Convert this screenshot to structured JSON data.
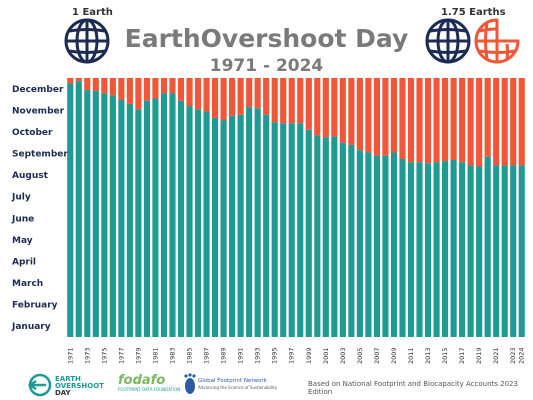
{
  "header": {
    "title": "EarthOvershoot Day",
    "subtitle": "1971 - 2024",
    "left_label": "1 Earth",
    "right_label": "1.75 Earths"
  },
  "logos": {
    "overshoot_lines": [
      "EARTH",
      "OVERSHOOT",
      "DAY"
    ],
    "fodafo_name": "fodafo",
    "fodafo_sub": "FOOTPRINT DATA FOUNDATION",
    "gfn_name": "Global Footprint Network",
    "gfn_sub": "Advancing the Science of Sustainability"
  },
  "footer": {
    "source": "Based on National Footprint and Biocapacity Accounts 2023 Edition"
  },
  "colors": {
    "teal": "#1f9a95",
    "orange": "#f05638",
    "globe_navy": "#1c2b53",
    "text_gray": "#7a7a7a"
  },
  "chart_data": {
    "type": "bar",
    "stacked": true,
    "categories": [
      "1971",
      "1972",
      "1973",
      "1974",
      "1975",
      "1976",
      "1977",
      "1978",
      "1979",
      "1980",
      "1981",
      "1982",
      "1983",
      "1984",
      "1985",
      "1986",
      "1987",
      "1988",
      "1989",
      "1990",
      "1991",
      "1992",
      "1993",
      "1994",
      "1995",
      "1996",
      "1997",
      "1998",
      "1999",
      "2000",
      "2001",
      "2002",
      "2003",
      "2004",
      "2005",
      "2006",
      "2007",
      "2008",
      "2009",
      "2010",
      "2011",
      "2012",
      "2013",
      "2014",
      "2015",
      "2016",
      "2017",
      "2018",
      "2019",
      "2020",
      "2021",
      "2022",
      "2023",
      "2024"
    ],
    "x_tick_labels": [
      "1971",
      "1973",
      "1975",
      "1977",
      "1979",
      "1981",
      "1983",
      "1985",
      "1987",
      "1989",
      "1991",
      "1993",
      "1995",
      "1997",
      "1999",
      "2001",
      "2003",
      "2005",
      "2007",
      "2009",
      "2011",
      "2013",
      "2015",
      "2017",
      "2019",
      "2021",
      "2023",
      "2024"
    ],
    "y_tick_labels": [
      "January",
      "February",
      "March",
      "April",
      "May",
      "June",
      "July",
      "August",
      "September",
      "October",
      "November",
      "December"
    ],
    "ylim": [
      0,
      12
    ],
    "series": [
      {
        "color_key": "teal",
        "values": [
          11.75,
          11.85,
          11.45,
          11.4,
          11.3,
          11.2,
          11.0,
          10.8,
          10.55,
          10.95,
          11.05,
          11.3,
          11.3,
          10.95,
          10.7,
          10.55,
          10.45,
          10.15,
          10.05,
          10.25,
          10.3,
          10.65,
          10.6,
          10.3,
          9.95,
          9.9,
          9.9,
          9.9,
          9.6,
          9.35,
          9.25,
          9.3,
          9.0,
          8.9,
          8.65,
          8.55,
          8.4,
          8.4,
          8.55,
          8.25,
          8.1,
          8.1,
          8.05,
          8.1,
          8.15,
          8.2,
          8.1,
          7.95,
          7.9,
          8.35,
          7.95,
          7.95,
          7.95,
          7.95
        ]
      },
      {
        "color_key": "orange",
        "values": [
          0.25,
          0.15,
          0.55,
          0.6,
          0.7,
          0.8,
          1.0,
          1.2,
          1.45,
          1.05,
          0.95,
          0.7,
          0.7,
          1.05,
          1.3,
          1.45,
          1.55,
          1.85,
          1.95,
          1.75,
          1.7,
          1.35,
          1.4,
          1.7,
          2.05,
          2.1,
          2.1,
          2.1,
          2.4,
          2.65,
          2.75,
          2.7,
          3.0,
          3.1,
          3.35,
          3.45,
          3.6,
          3.6,
          3.45,
          3.75,
          3.9,
          3.9,
          3.95,
          3.9,
          3.85,
          3.8,
          3.9,
          4.05,
          4.1,
          3.65,
          4.05,
          4.05,
          4.05,
          4.05
        ]
      }
    ]
  }
}
